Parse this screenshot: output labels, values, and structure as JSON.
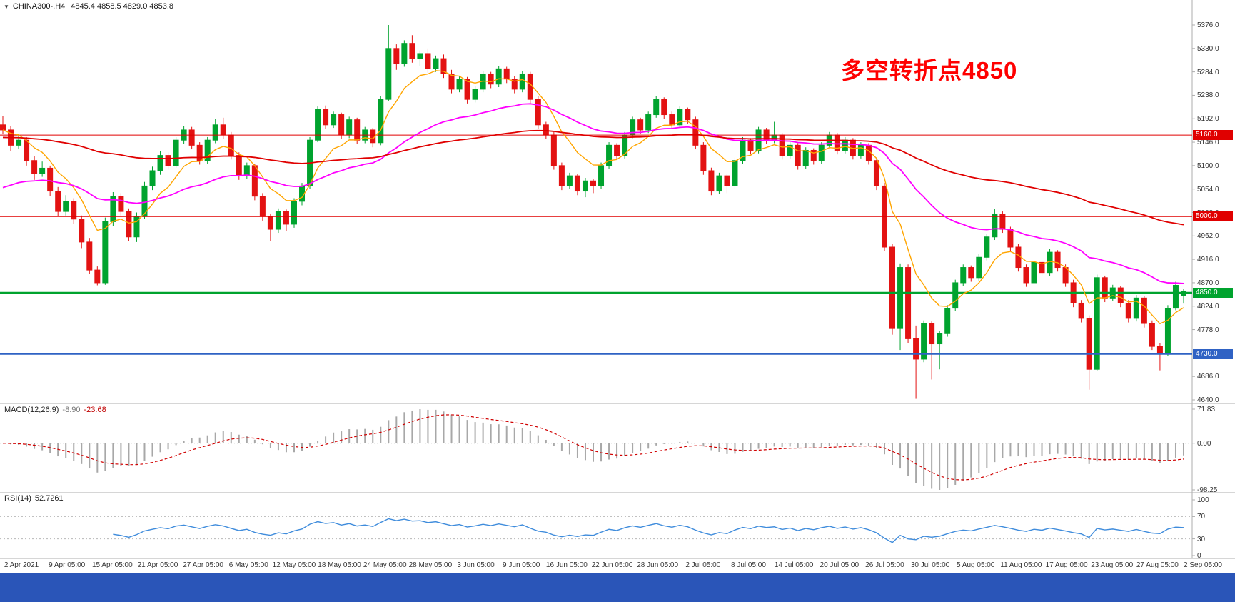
{
  "header": {
    "ohlc_text": "4845.4 4858.5 4829.0 4853.8"
  },
  "colors": {
    "up": "#00A32E",
    "down": "#E31212",
    "ma_fast": "#FFA500",
    "ma_mid": "#FF00FF",
    "ma_slow": "#E00000",
    "macd_hist": "#A8A8A8",
    "macd_signal": "#D00000",
    "rsi_line": "#3F8CDC",
    "grid": "#B8B8B8",
    "separator": "#ADADAD",
    "footer": "#2A55B8"
  },
  "chart_data": {
    "type": "candlestick",
    "title": "CHINA300-,H4",
    "timeframe": "H4",
    "last_bar": {
      "open": 4845.4,
      "high": 4858.5,
      "low": 4829.0,
      "close": 4853.8
    },
    "ylim": [
      4640,
      5376
    ],
    "y_ticks": [
      5376.0,
      5330.0,
      5284.0,
      5238.0,
      5192.0,
      5146.0,
      5100.0,
      5054.0,
      5008.0,
      4962.0,
      4916.0,
      4870.0,
      4824.0,
      4778.0,
      4732.0,
      4686.0,
      4640.0
    ],
    "x_labels": [
      "2 Apr 2021",
      "9 Apr 05:00",
      "15 Apr 05:00",
      "21 Apr 05:00",
      "27 Apr 05:00",
      "6 May 05:00",
      "12 May 05:00",
      "18 May 05:00",
      "24 May 05:00",
      "28 May 05:00",
      "3 Jun 05:00",
      "9 Jun 05:00",
      "16 Jun 05:00",
      "22 Jun 05:00",
      "28 Jun 05:00",
      "2 Jul 05:00",
      "8 Jul 05:00",
      "14 Jul 05:00",
      "20 Jul 05:00",
      "26 Jul 05:00",
      "30 Jul 05:00",
      "5 Aug 05:00",
      "11 Aug 05:00",
      "17 Aug 05:00",
      "23 Aug 05:00",
      "27 Aug 05:00",
      "2 Sep 05:00"
    ],
    "horizontal_lines": [
      {
        "price": 5160.0,
        "tag": "5160.0",
        "color": "#E00000",
        "width": 1
      },
      {
        "price": 5000.0,
        "tag": "5000.0",
        "color": "#E00000",
        "width": 1
      },
      {
        "price": 4850.0,
        "tag": "4850.0",
        "color": "#00A32E",
        "width": 3
      },
      {
        "price": 4730.0,
        "tag": "4730.0",
        "color": "#2F62C4",
        "width": 2
      }
    ],
    "annotation": {
      "text": "多空转折点4850",
      "color": "#FF0000"
    },
    "indicators": [
      {
        "type": "macd",
        "name_text": "MACD(12,26,9)",
        "main_text": "-8.90",
        "signal_text": "-23.68",
        "main": -8.9,
        "signal": -23.68,
        "ylim": [
          -98.25,
          71.83
        ],
        "scale_values": [
          71.83,
          0.0,
          -98.25
        ]
      },
      {
        "type": "rsi",
        "name_text": "RSI(14)",
        "value_text": "52.7261",
        "value": 52.7261,
        "levels": [
          70,
          30
        ],
        "ylim": [
          0,
          100
        ],
        "scale_values": [
          100,
          70,
          30,
          0
        ]
      }
    ],
    "candles": [
      [
        5180,
        5198,
        5162,
        5170
      ],
      [
        5170,
        5178,
        5128,
        5140
      ],
      [
        5140,
        5162,
        5132,
        5150
      ],
      [
        5150,
        5156,
        5100,
        5110
      ],
      [
        5110,
        5118,
        5072,
        5085
      ],
      [
        5085,
        5108,
        5078,
        5095
      ],
      [
        5095,
        5100,
        5040,
        5050
      ],
      [
        5050,
        5058,
        5000,
        5010
      ],
      [
        5010,
        5042,
        5002,
        5030
      ],
      [
        5030,
        5036,
        4985,
        4995
      ],
      [
        4995,
        5002,
        4938,
        4950
      ],
      [
        4950,
        4958,
        4888,
        4895
      ],
      [
        4895,
        4902,
        4865,
        4870
      ],
      [
        4870,
        4998,
        4866,
        4990
      ],
      [
        4990,
        5048,
        4982,
        5040
      ],
      [
        5040,
        5046,
        5002,
        5010
      ],
      [
        5010,
        5016,
        4952,
        4960
      ],
      [
        4960,
        5008,
        4950,
        5000
      ],
      [
        5000,
        5068,
        4996,
        5060
      ],
      [
        5060,
        5098,
        5052,
        5090
      ],
      [
        5090,
        5128,
        5082,
        5120
      ],
      [
        5120,
        5126,
        5092,
        5100
      ],
      [
        5100,
        5156,
        5096,
        5150
      ],
      [
        5150,
        5178,
        5142,
        5170
      ],
      [
        5170,
        5176,
        5132,
        5140
      ],
      [
        5140,
        5146,
        5102,
        5110
      ],
      [
        5110,
        5156,
        5104,
        5150
      ],
      [
        5150,
        5192,
        5144,
        5180
      ],
      [
        5180,
        5194,
        5152,
        5160
      ],
      [
        5160,
        5166,
        5112,
        5120
      ],
      [
        5120,
        5126,
        5072,
        5080
      ],
      [
        5080,
        5106,
        5074,
        5100
      ],
      [
        5100,
        5104,
        5032,
        5040
      ],
      [
        5040,
        5046,
        4992,
        5000
      ],
      [
        5000,
        5006,
        4952,
        4975
      ],
      [
        4975,
        5016,
        4968,
        5010
      ],
      [
        5010,
        5014,
        4972,
        4985
      ],
      [
        4985,
        5036,
        4978,
        5030
      ],
      [
        5030,
        5066,
        5022,
        5060
      ],
      [
        5060,
        5156,
        5054,
        5150
      ],
      [
        5150,
        5216,
        5146,
        5210
      ],
      [
        5210,
        5218,
        5172,
        5180
      ],
      [
        5180,
        5206,
        5174,
        5200
      ],
      [
        5200,
        5204,
        5152,
        5160
      ],
      [
        5160,
        5196,
        5154,
        5190
      ],
      [
        5190,
        5194,
        5142,
        5150
      ],
      [
        5150,
        5176,
        5144,
        5170
      ],
      [
        5170,
        5174,
        5136,
        5145
      ],
      [
        5145,
        5236,
        5140,
        5230
      ],
      [
        5230,
        5376,
        5226,
        5330
      ],
      [
        5330,
        5338,
        5288,
        5300
      ],
      [
        5300,
        5346,
        5294,
        5340
      ],
      [
        5340,
        5356,
        5302,
        5310
      ],
      [
        5310,
        5326,
        5296,
        5320
      ],
      [
        5320,
        5330,
        5282,
        5290
      ],
      [
        5290,
        5316,
        5284,
        5310
      ],
      [
        5310,
        5318,
        5272,
        5280
      ],
      [
        5280,
        5288,
        5242,
        5250
      ],
      [
        5250,
        5276,
        5244,
        5270
      ],
      [
        5270,
        5274,
        5222,
        5230
      ],
      [
        5230,
        5256,
        5224,
        5250
      ],
      [
        5250,
        5286,
        5244,
        5280
      ],
      [
        5280,
        5284,
        5252,
        5260
      ],
      [
        5260,
        5296,
        5254,
        5290
      ],
      [
        5290,
        5294,
        5262,
        5270
      ],
      [
        5270,
        5276,
        5242,
        5250
      ],
      [
        5250,
        5286,
        5244,
        5280
      ],
      [
        5280,
        5284,
        5222,
        5230
      ],
      [
        5230,
        5236,
        5172,
        5180
      ],
      [
        5180,
        5186,
        5152,
        5160
      ],
      [
        5160,
        5166,
        5092,
        5100
      ],
      [
        5100,
        5106,
        5052,
        5060
      ],
      [
        5060,
        5086,
        5054,
        5080
      ],
      [
        5080,
        5084,
        5042,
        5050
      ],
      [
        5050,
        5076,
        5038,
        5070
      ],
      [
        5070,
        5074,
        5046,
        5060
      ],
      [
        5060,
        5106,
        5054,
        5100
      ],
      [
        5100,
        5146,
        5094,
        5140
      ],
      [
        5140,
        5144,
        5112,
        5120
      ],
      [
        5120,
        5166,
        5114,
        5160
      ],
      [
        5160,
        5196,
        5154,
        5190
      ],
      [
        5190,
        5194,
        5162,
        5170
      ],
      [
        5170,
        5206,
        5164,
        5200
      ],
      [
        5200,
        5236,
        5194,
        5230
      ],
      [
        5230,
        5234,
        5192,
        5200
      ],
      [
        5200,
        5206,
        5172,
        5180
      ],
      [
        5180,
        5216,
        5174,
        5210
      ],
      [
        5210,
        5214,
        5182,
        5190
      ],
      [
        5190,
        5196,
        5132,
        5140
      ],
      [
        5140,
        5146,
        5082,
        5090
      ],
      [
        5090,
        5096,
        5042,
        5050
      ],
      [
        5050,
        5086,
        5044,
        5080
      ],
      [
        5080,
        5084,
        5046,
        5060
      ],
      [
        5060,
        5116,
        5054,
        5110
      ],
      [
        5110,
        5156,
        5104,
        5150
      ],
      [
        5150,
        5154,
        5122,
        5130
      ],
      [
        5130,
        5176,
        5124,
        5170
      ],
      [
        5170,
        5174,
        5142,
        5150
      ],
      [
        5150,
        5186,
        5144,
        5160
      ],
      [
        5160,
        5164,
        5112,
        5120
      ],
      [
        5120,
        5146,
        5114,
        5140
      ],
      [
        5140,
        5144,
        5092,
        5100
      ],
      [
        5100,
        5136,
        5094,
        5130
      ],
      [
        5130,
        5134,
        5102,
        5110
      ],
      [
        5110,
        5146,
        5104,
        5140
      ],
      [
        5140,
        5166,
        5134,
        5160
      ],
      [
        5160,
        5164,
        5122,
        5130
      ],
      [
        5130,
        5156,
        5124,
        5150
      ],
      [
        5150,
        5154,
        5112,
        5120
      ],
      [
        5120,
        5146,
        5114,
        5140
      ],
      [
        5140,
        5144,
        5102,
        5110
      ],
      [
        5110,
        5116,
        5052,
        5060
      ],
      [
        5060,
        5066,
        4932,
        4940
      ],
      [
        4940,
        4946,
        4768,
        4780
      ],
      [
        4780,
        4908,
        4738,
        4900
      ],
      [
        4900,
        4906,
        4752,
        4760
      ],
      [
        4760,
        4786,
        4642,
        4720
      ],
      [
        4720,
        4796,
        4714,
        4790
      ],
      [
        4790,
        4794,
        4680,
        4750
      ],
      [
        4750,
        4776,
        4700,
        4770
      ],
      [
        4770,
        4826,
        4764,
        4820
      ],
      [
        4820,
        4876,
        4814,
        4870
      ],
      [
        4870,
        4906,
        4864,
        4900
      ],
      [
        4900,
        4904,
        4872,
        4880
      ],
      [
        4880,
        4926,
        4874,
        4920
      ],
      [
        4920,
        4966,
        4914,
        4960
      ],
      [
        4960,
        5015,
        4954,
        5005
      ],
      [
        5005,
        5010,
        4968,
        4975
      ],
      [
        4975,
        4980,
        4932,
        4940
      ],
      [
        4940,
        4946,
        4892,
        4900
      ],
      [
        4900,
        4906,
        4862,
        4870
      ],
      [
        4870,
        4916,
        4864,
        4910
      ],
      [
        4910,
        4914,
        4882,
        4890
      ],
      [
        4890,
        4936,
        4884,
        4930
      ],
      [
        4930,
        4934,
        4892,
        4900
      ],
      [
        4900,
        4906,
        4862,
        4870
      ],
      [
        4870,
        4876,
        4822,
        4830
      ],
      [
        4830,
        4836,
        4792,
        4800
      ],
      [
        4800,
        4806,
        4660,
        4700
      ],
      [
        4700,
        4886,
        4696,
        4880
      ],
      [
        4880,
        4884,
        4832,
        4840
      ],
      [
        4840,
        4866,
        4834,
        4860
      ],
      [
        4860,
        4864,
        4822,
        4830
      ],
      [
        4830,
        4836,
        4792,
        4800
      ],
      [
        4800,
        4846,
        4794,
        4840
      ],
      [
        4840,
        4844,
        4782,
        4790
      ],
      [
        4790,
        4796,
        4738,
        4745
      ],
      [
        4745,
        4752,
        4698,
        4730
      ],
      [
        4730,
        4826,
        4726,
        4820
      ],
      [
        4820,
        4872,
        4816,
        4865
      ],
      [
        4845.4,
        4858.5,
        4829.0,
        4853.8
      ]
    ]
  }
}
